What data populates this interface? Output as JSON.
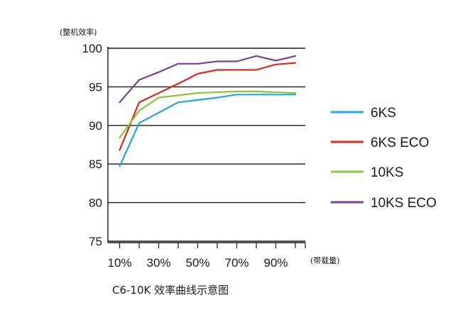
{
  "chart_data": {
    "type": "line",
    "title": "",
    "caption": "C6-10K 效率曲线示意图",
    "ylabel": "(整机效率)",
    "xlabel": "(带载量)",
    "ylim": [
      75,
      100
    ],
    "yticks": [
      "75",
      "80",
      "85",
      "90",
      "95",
      "100"
    ],
    "xlim": [
      0,
      100
    ],
    "xtick_values": [
      10,
      30,
      50,
      70,
      90
    ],
    "xticks": [
      "10%",
      "30%",
      "50%",
      "70%",
      "90%"
    ],
    "grid": "horizontal",
    "legend_position": "right",
    "series": [
      {
        "name": "6KS",
        "color": "#1fa9e1",
        "x": [
          10,
          20,
          40,
          60,
          70,
          80,
          90,
          100
        ],
        "y": [
          84.7,
          90.3,
          93.0,
          93.6,
          94.0,
          94.0,
          94.0,
          94.0
        ]
      },
      {
        "name": "6KS ECO",
        "color": "#e1261c",
        "x": [
          10,
          20,
          40,
          50,
          60,
          70,
          80,
          90,
          100
        ],
        "y": [
          86.8,
          93.0,
          95.4,
          96.7,
          97.2,
          97.2,
          97.2,
          97.9,
          98.1
        ]
      },
      {
        "name": "10KS",
        "color": "#8cc63f",
        "x": [
          10,
          20,
          30,
          40,
          50,
          60,
          70,
          80,
          100
        ],
        "y": [
          88.4,
          91.9,
          93.6,
          93.9,
          94.2,
          94.3,
          94.4,
          94.4,
          94.2
        ]
      },
      {
        "name": "10KS ECO",
        "color": "#7b3f98",
        "x": [
          10,
          20,
          30,
          40,
          50,
          60,
          70,
          80,
          90,
          100
        ],
        "y": [
          93.0,
          95.9,
          96.9,
          98.0,
          98.0,
          98.3,
          98.3,
          99.0,
          98.4,
          99.0
        ]
      }
    ]
  }
}
